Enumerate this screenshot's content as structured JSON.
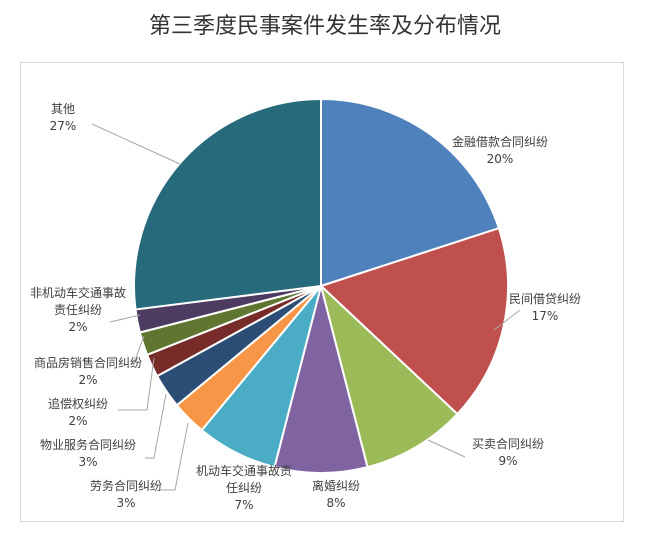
{
  "chart_data": {
    "type": "pie",
    "title": "第三季度民事案件发生率及分布情况",
    "slices": [
      {
        "name": "金融借款合同纠纷",
        "label_lines": [
          "金融借款合同纠纷"
        ],
        "value": 20,
        "pct_label": "20%",
        "color": "#4f81bd"
      },
      {
        "name": "民间借贷纠纷",
        "label_lines": [
          "民间借贷纠纷"
        ],
        "value": 17,
        "pct_label": "17%",
        "color": "#c0504d"
      },
      {
        "name": "买卖合同纠纷",
        "label_lines": [
          "买卖合同纠纷"
        ],
        "value": 9,
        "pct_label": "9%",
        "color": "#9bbb59"
      },
      {
        "name": "离婚纠纷",
        "label_lines": [
          "离婚纠纷"
        ],
        "value": 8,
        "pct_label": "8%",
        "color": "#8064a2"
      },
      {
        "name": "机动车交通事故责任纠纷",
        "label_lines": [
          "机动车交通事故责",
          "任纠纷"
        ],
        "value": 7,
        "pct_label": "7%",
        "color": "#4bacc6"
      },
      {
        "name": "劳务合同纠纷",
        "label_lines": [
          "劳务合同纠纷"
        ],
        "value": 3,
        "pct_label": "3%",
        "color": "#f79646"
      },
      {
        "name": "物业服务合同纠纷",
        "label_lines": [
          "物业服务合同纠纷"
        ],
        "value": 3,
        "pct_label": "3%",
        "color": "#2c4d75"
      },
      {
        "name": "追偿权纠纷",
        "label_lines": [
          "追偿权纠纷"
        ],
        "value": 2,
        "pct_label": "2%",
        "color": "#772c2a"
      },
      {
        "name": "商品房销售合同纠纷",
        "label_lines": [
          "商品房销售合同纠纷"
        ],
        "value": 2,
        "pct_label": "2%",
        "color": "#5f7530"
      },
      {
        "name": "非机动车交通事故责任纠纷",
        "label_lines": [
          "非机动车交通事故",
          "责任纠纷"
        ],
        "value": 2,
        "pct_label": "2%",
        "color": "#4d3b62"
      },
      {
        "name": "其他",
        "label_lines": [
          "其他"
        ],
        "value": 27,
        "pct_label": "27%",
        "color": "#276a7c"
      }
    ]
  }
}
